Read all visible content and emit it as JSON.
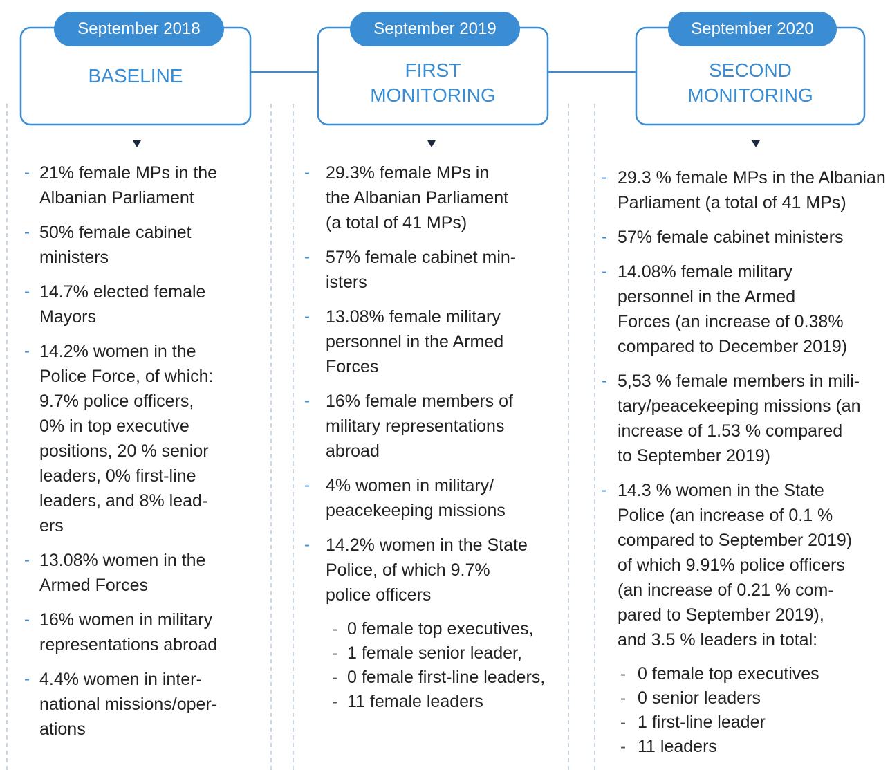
{
  "columns": [
    {
      "date": "September 2018",
      "heading": [
        "BASELINE"
      ],
      "items": [
        {
          "lines": [
            "21% female MPs in the",
            "Albanian Parliament"
          ]
        },
        {
          "lines": [
            "50% female cabinet",
            "ministers"
          ]
        },
        {
          "lines": [
            "14.7% elected female",
            "Mayors"
          ]
        },
        {
          "lines": [
            "14.2% women in the",
            "Police Force, of which:",
            "9.7% police officers,",
            "0% in top executive",
            "positions, 20 % senior",
            "leaders, 0% first-line",
            "leaders, and 8% lead-",
            "ers"
          ]
        },
        {
          "lines": [
            "13.08% women in the",
            "Armed Forces"
          ]
        },
        {
          "lines": [
            "16% women in military",
            "representations abroad"
          ]
        },
        {
          "lines": [
            "4.4% women in inter-",
            "national missions/oper-",
            "ations"
          ]
        }
      ]
    },
    {
      "date": "September 2019",
      "heading": [
        "FIRST",
        "MONITORING"
      ],
      "items": [
        {
          "lines": [
            "29.3% female MPs in",
            "the Albanian Parliament",
            "(a total of 41 MPs)"
          ]
        },
        {
          "lines": [
            "57% female cabinet min-",
            "isters"
          ]
        },
        {
          "lines": [
            "13.08% female military",
            "personnel in the Armed",
            "Forces"
          ]
        },
        {
          "lines": [
            "16% female members of",
            "military representations",
            "abroad"
          ]
        },
        {
          "lines": [
            "4% women in military/",
            "peacekeeping missions"
          ]
        },
        {
          "lines": [
            "14.2% women in the State",
            "Police, of which 9.7%",
            "police officers"
          ],
          "subitems": [
            "0 female top executives,",
            "1 female senior leader,",
            "0 female first-line leaders,",
            "11 female leaders"
          ]
        }
      ]
    },
    {
      "date": "September 2020",
      "heading": [
        "SECOND",
        "MONITORING"
      ],
      "items": [
        {
          "lines": [
            "29.3 % female MPs in the  Albanian",
            "Parliament (a total of 41 MPs)"
          ]
        },
        {
          "lines": [
            "57% female cabinet ministers"
          ]
        },
        {
          "lines": [
            "14.08% female military",
            "personnel in the Armed",
            "Forces (an increase of 0.38%",
            "compared to December 2019)"
          ]
        },
        {
          "lines": [
            "5,53 % female members in mili-",
            "tary/peacekeeping missions (an",
            "increase of 1.53 % compared",
            "to September 2019)"
          ]
        },
        {
          "lines": [
            "14.3 % women in the State",
            "Police (an increase of 0.1 %",
            "compared to September 2019)",
            "of which 9.91% police officers",
            "(an increase of 0.21 % com-",
            "pared to September 2019),",
            "and 3.5 % leaders in total:"
          ],
          "subitems": [
            "0 female top executives",
            "0 senior leaders",
            "1 first-line leader",
            "11 leaders"
          ]
        }
      ]
    }
  ]
}
